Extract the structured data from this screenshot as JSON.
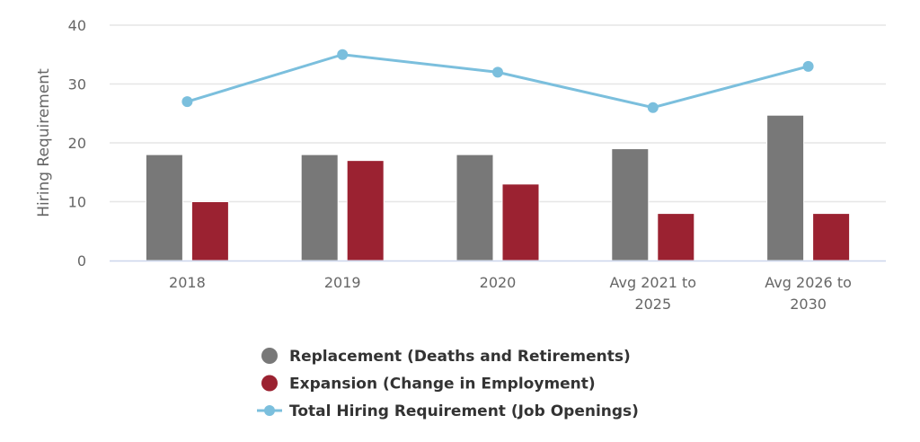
{
  "chart_data": {
    "type": "bar",
    "title": "",
    "xlabel": "",
    "ylabel": "Hiring Requirement",
    "ylim": [
      0,
      40
    ],
    "yticks": [
      0,
      10,
      20,
      30,
      40
    ],
    "grid": true,
    "legend_position": "bottom-center",
    "categories": [
      [
        "2018"
      ],
      [
        "2019"
      ],
      [
        "2020"
      ],
      [
        "Avg 2021 to",
        "2025"
      ],
      [
        "Avg 2026 to",
        "2030"
      ]
    ],
    "series": [
      {
        "name": "Replacement (Deaths and Retirements)",
        "kind": "bar",
        "color": "#787878",
        "values": [
          18,
          18,
          18,
          19,
          24.7
        ]
      },
      {
        "name": "Expansion (Change in Employment)",
        "kind": "bar",
        "color": "#9b2231",
        "values": [
          10,
          17,
          13,
          8,
          8
        ]
      },
      {
        "name": "Total Hiring Requirement (Job Openings)",
        "kind": "line",
        "color": "#7bbfdd",
        "values": [
          27,
          35,
          32,
          26,
          33
        ]
      }
    ]
  }
}
